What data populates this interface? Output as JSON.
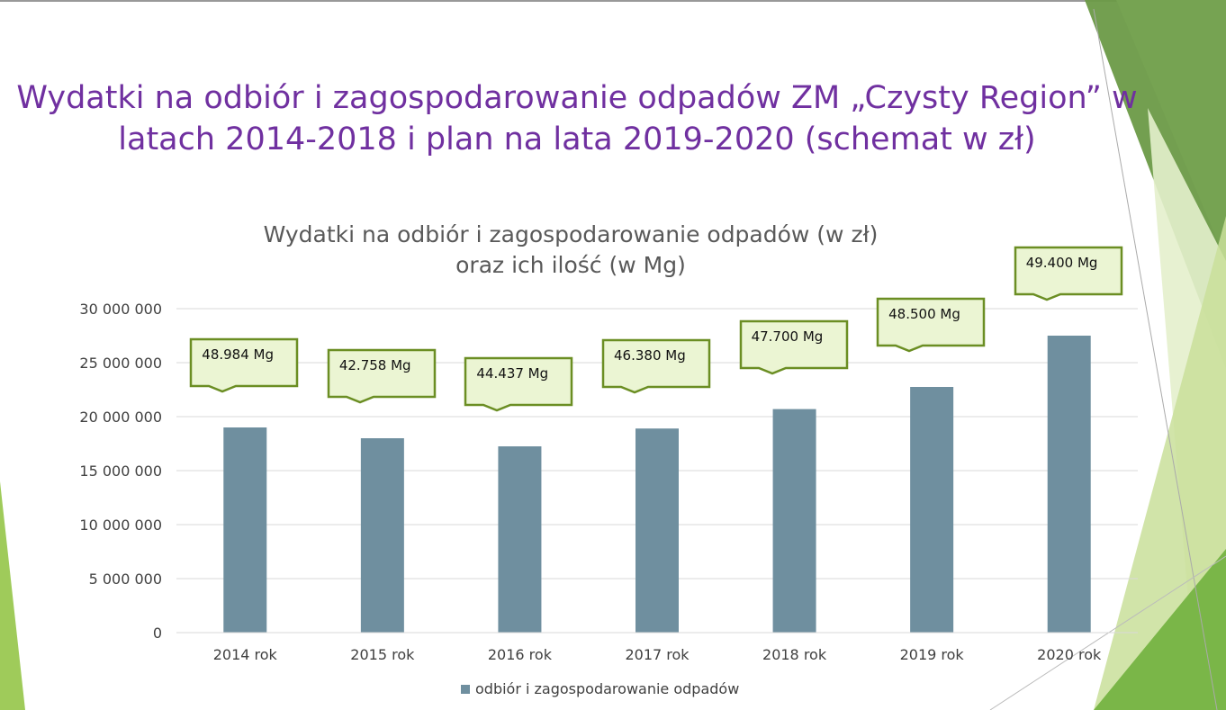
{
  "slide_title": "Wydatki na odbiór i zagospodarowanie odpadów ZM „Czysty Region” w latach 2014-2018 i plan na lata 2019-2020 (schemat w zł)",
  "chart_data": {
    "type": "bar",
    "title_line1": "Wydatki na odbiór i zagospodarowanie odpadów (w zł)",
    "title_line2": "oraz ich ilość (w Mg)",
    "categories": [
      "2014 rok",
      "2015 rok",
      "2016 rok",
      "2017 rok",
      "2018 rok",
      "2019 rok",
      "2020 rok"
    ],
    "series": [
      {
        "name": "odbiór i zagospodarowanie odpadów",
        "values": [
          19000000,
          18000000,
          17250000,
          18900000,
          20700000,
          22750000,
          27500000
        ],
        "color": "#6f8f9f"
      }
    ],
    "annotations": [
      "48.984 Mg",
      "42.758 Mg",
      "44.437 Mg",
      "46.380 Mg",
      "47.700 Mg",
      "48.500 Mg",
      "49.400 Mg"
    ],
    "yticks": [
      "0",
      "5 000 000",
      "10 000 000",
      "15 000 000",
      "20 000 000",
      "25 000 000",
      "30 000 000"
    ],
    "ylim": [
      0,
      30000000
    ],
    "grid": true,
    "legend": "bottom"
  }
}
